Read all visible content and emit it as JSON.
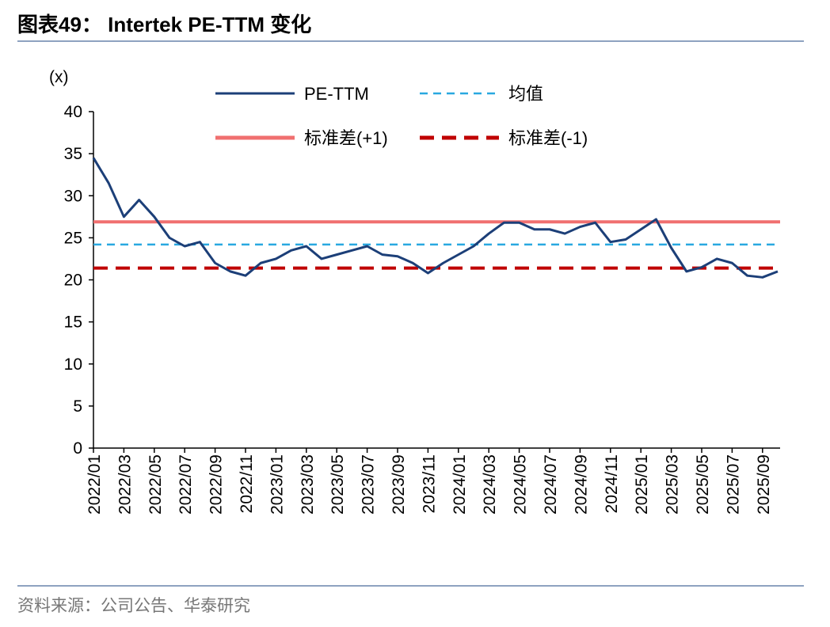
{
  "chart_data": {
    "type": "line",
    "title": "图表49： Intertek PE-TTM 变化",
    "source": "资料来源：公司公告、华泰研究",
    "y_label": "(x)",
    "categories": [
      "2022/01",
      null,
      "2022/03",
      null,
      "2022/05",
      null,
      "2022/07",
      null,
      "2022/09",
      null,
      "2022/11",
      null,
      "2023/01",
      null,
      "2023/03",
      null,
      "2023/05",
      null,
      "2023/07",
      null,
      "2023/09",
      null,
      "2023/11",
      null,
      "2024/01",
      null,
      "2024/03",
      null,
      "2024/05",
      null,
      "2024/07",
      null,
      "2024/09",
      null,
      "2024/11",
      null,
      "2025/01",
      null,
      "2025/03",
      null,
      "2025/05",
      null,
      "2025/07",
      null,
      "2025/09",
      null
    ],
    "series": [
      {
        "name": "PE-TTM",
        "color": "#1c3f78",
        "values": [
          34.5,
          31.5,
          27.5,
          29.5,
          27.5,
          25,
          24,
          24.5,
          22,
          21,
          20.5,
          22,
          22.5,
          23.5,
          24,
          22.5,
          23,
          23.5,
          24,
          23,
          22.8,
          22,
          20.8,
          22,
          23,
          24,
          25.5,
          26.8,
          26.8,
          26,
          26,
          25.5,
          26.3,
          26.8,
          24.5,
          24.8,
          26,
          27.2,
          23.8,
          21,
          21.5,
          22.5,
          22,
          20.5,
          20.3,
          21
        ]
      }
    ],
    "reference_lines": [
      {
        "name": "均值",
        "color": "#29a8e0",
        "value": 24.2,
        "dashed": true
      },
      {
        "name": "标准差(+1)",
        "color": "#f07070",
        "value": 26.9,
        "dashed": false
      },
      {
        "name": "标准差(-1)",
        "color": "#c00000",
        "value": 21.4,
        "dashed": true
      }
    ],
    "ylim": [
      0,
      40
    ],
    "yticks": [
      0,
      5,
      10,
      15,
      20,
      25,
      30,
      35,
      40
    ]
  }
}
